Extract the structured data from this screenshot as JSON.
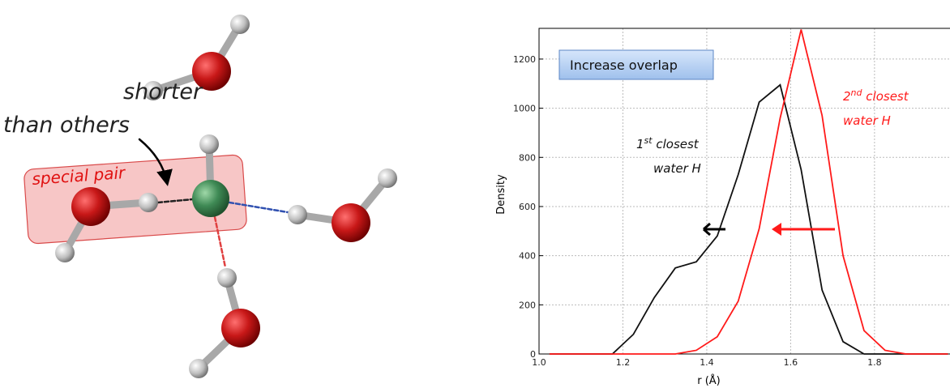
{
  "diagram": {
    "label_top": "shorter",
    "label_bottom": "than others",
    "pair_label": "special pair"
  },
  "chart_data": {
    "type": "line",
    "x_label": "r (Å)",
    "y_label": "Density",
    "x": [
      1.025,
      1.075,
      1.125,
      1.175,
      1.225,
      1.275,
      1.325,
      1.375,
      1.425,
      1.475,
      1.525,
      1.575,
      1.625,
      1.675,
      1.725,
      1.775,
      1.825,
      1.875,
      1.925,
      1.975
    ],
    "series": [
      {
        "color": "#111111",
        "values": [
          0,
          0,
          0,
          0,
          80,
          230,
          350,
          375,
          480,
          730,
          1025,
          1095,
          750,
          260,
          50,
          0,
          0,
          0,
          0,
          0
        ]
      },
      {
        "color": "#ff1a1a",
        "values": [
          0,
          0,
          0,
          0,
          0,
          0,
          0,
          15,
          70,
          215,
          510,
          960,
          1320,
          970,
          400,
          95,
          15,
          0,
          0,
          0
        ]
      }
    ],
    "xlim": [
      1.0,
      1.98
    ],
    "ylim": [
      0,
      1325
    ],
    "xticks": [
      {
        "value": 1.0,
        "label": "1.0"
      },
      1.2,
      1.4,
      1.6,
      1.8
    ],
    "yticks": [
      0,
      200,
      400,
      600,
      800,
      1000,
      1200
    ],
    "grid": true,
    "annotations": {
      "box": "Increase overlap",
      "first": {
        "num": "1",
        "sup": "st",
        "rest": " closest",
        "line2": "water H"
      },
      "second": {
        "num": "2",
        "sup": "nd",
        "rest": " closest",
        "line2": "water H"
      }
    }
  }
}
